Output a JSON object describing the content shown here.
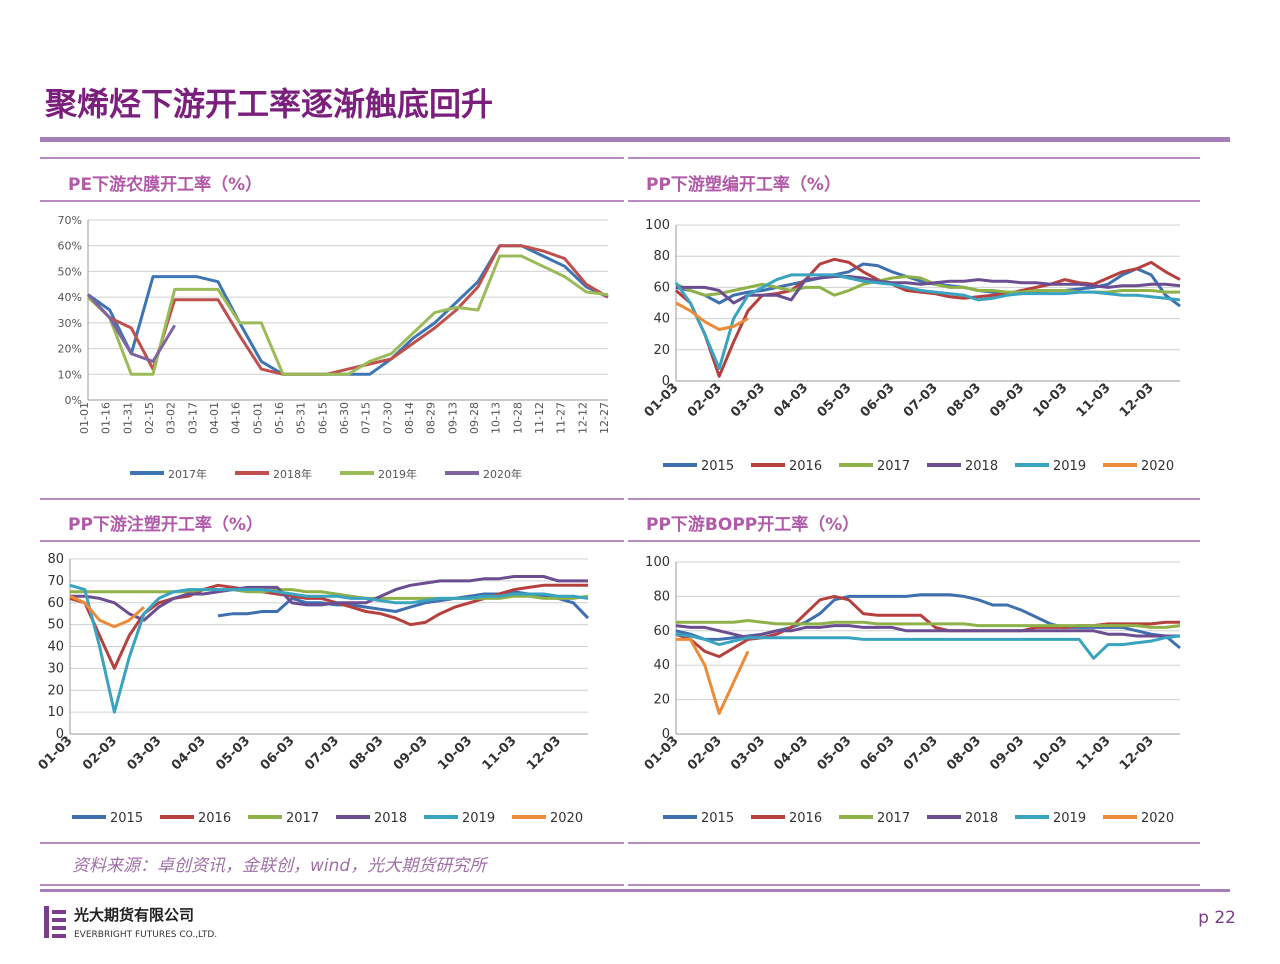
{
  "title": "聚烯烃下游开工率逐渐触底回升",
  "source": "资料来源：卓创资讯，金联创，wind，光大期货研究所",
  "footer": {
    "company": "光大期货有限公司",
    "company_en": "EVERBRIGHT FUTURES CO.,LTD.",
    "page": "p 22"
  },
  "chart_data": [
    {
      "type": "line",
      "title": "PE下游农膜开工率（%）",
      "categories": [
        "01-01",
        "01-16",
        "01-31",
        "02-15",
        "03-02",
        "03-17",
        "04-01",
        "04-16",
        "05-01",
        "05-16",
        "05-31",
        "06-15",
        "06-30",
        "07-15",
        "07-30",
        "08-14",
        "08-29",
        "09-13",
        "09-28",
        "10-13",
        "10-28",
        "11-12",
        "11-27",
        "12-12",
        "12-27"
      ],
      "ylim": [
        0,
        70
      ],
      "yticks": [
        {
          "value": 0,
          "label": "0%"
        },
        {
          "value": 10,
          "label": "10%"
        },
        {
          "value": 20,
          "label": "20%"
        },
        {
          "value": 30,
          "label": "30%"
        },
        {
          "value": 40,
          "label": "40%"
        },
        {
          "value": 50,
          "label": "50%"
        },
        {
          "value": 60,
          "label": "60%"
        },
        {
          "value": 70,
          "label": "70%"
        }
      ],
      "grid": true,
      "series": [
        {
          "name": "2017年",
          "color": "#3c75b4",
          "values": [
            41,
            35,
            18,
            48,
            48,
            48,
            46,
            30,
            15,
            10,
            10,
            10,
            10,
            10,
            16,
            24,
            30,
            38,
            46,
            60,
            60,
            56,
            52,
            44,
            40
          ]
        },
        {
          "name": "2018年",
          "color": "#c0504d",
          "values": [
            41,
            32,
            28,
            12,
            39,
            39,
            39,
            25,
            12,
            10,
            10,
            10,
            12,
            14,
            16,
            22,
            28,
            35,
            44,
            60,
            60,
            58,
            55,
            45,
            40
          ]
        },
        {
          "name": "2019年",
          "color": "#9bbb59",
          "values": [
            40,
            32,
            10,
            10,
            43,
            43,
            43,
            30,
            30,
            10,
            10,
            10,
            10,
            15,
            18,
            26,
            34,
            36,
            35,
            56,
            56,
            52,
            48,
            42,
            41
          ]
        },
        {
          "name": "2020年",
          "color": "#8064a2",
          "values": [
            41,
            32,
            18,
            15,
            29,
            null,
            null,
            null,
            null,
            null,
            null,
            null,
            null,
            null,
            null,
            null,
            null,
            null,
            null,
            null,
            null,
            null,
            null,
            null,
            null
          ]
        }
      ]
    },
    {
      "type": "line",
      "title": "PP下游塑编开工率（%）",
      "categories": [
        "01-03",
        null,
        null,
        "02-03",
        null,
        null,
        "03-03",
        null,
        null,
        "04-03",
        null,
        null,
        "05-03",
        null,
        null,
        "06-03",
        null,
        null,
        "07-03",
        null,
        null,
        "08-03",
        null,
        null,
        "09-03",
        null,
        null,
        "10-03",
        null,
        null,
        "11-03",
        null,
        null,
        "12-03",
        null,
        null
      ],
      "ylim": [
        0,
        100
      ],
      "yticks": [
        0,
        20,
        40,
        60,
        80,
        100
      ],
      "grid": true,
      "series": [
        {
          "name": "2015",
          "color": "#3e6fae",
          "values": [
            60,
            58,
            55,
            50,
            55,
            57,
            58,
            60,
            62,
            64,
            66,
            68,
            70,
            75,
            74,
            70,
            67,
            64,
            62,
            61,
            60,
            58,
            57,
            56,
            56,
            57,
            58,
            58,
            59,
            60,
            62,
            68,
            72,
            68,
            55,
            48
          ]
        },
        {
          "name": "2016",
          "color": "#b5403e",
          "values": [
            58,
            50,
            30,
            3,
            25,
            45,
            55,
            56,
            58,
            65,
            75,
            78,
            76,
            70,
            65,
            62,
            58,
            57,
            56,
            54,
            53,
            54,
            55,
            56,
            58,
            60,
            62,
            65,
            63,
            62,
            66,
            70,
            72,
            76,
            70,
            65
          ]
        },
        {
          "name": "2017",
          "color": "#8fb14a",
          "values": [
            62,
            58,
            55,
            56,
            58,
            60,
            62,
            60,
            58,
            60,
            60,
            55,
            58,
            62,
            64,
            66,
            67,
            66,
            62,
            60,
            60,
            58,
            58,
            57,
            57,
            58,
            58,
            58,
            57,
            57,
            57,
            58,
            58,
            58,
            57,
            57
          ]
        },
        {
          "name": "2018",
          "color": "#6b4e91",
          "values": [
            60,
            60,
            60,
            58,
            50,
            55,
            55,
            55,
            52,
            65,
            66,
            67,
            67,
            66,
            64,
            63,
            63,
            62,
            63,
            64,
            64,
            65,
            64,
            64,
            63,
            63,
            62,
            62,
            62,
            61,
            60,
            61,
            61,
            62,
            62,
            61
          ]
        },
        {
          "name": "2019",
          "color": "#3aa3c0",
          "values": [
            63,
            50,
            30,
            8,
            40,
            55,
            60,
            65,
            68,
            68,
            68,
            68,
            66,
            64,
            63,
            62,
            60,
            58,
            57,
            56,
            55,
            52,
            53,
            55,
            56,
            56,
            56,
            56,
            57,
            57,
            56,
            55,
            55,
            54,
            53,
            52
          ]
        },
        {
          "name": "2020",
          "color": "#ec8b3a",
          "values": [
            50,
            45,
            38,
            33,
            35,
            40,
            null,
            null,
            null,
            null,
            null,
            null,
            null,
            null,
            null,
            null,
            null,
            null,
            null,
            null,
            null,
            null,
            null,
            null,
            null,
            null,
            null,
            null,
            null,
            null,
            null,
            null,
            null,
            null,
            null,
            null
          ]
        }
      ]
    },
    {
      "type": "line",
      "title": "PP下游注塑开工率（%）",
      "categories": [
        "01-03",
        null,
        null,
        "02-03",
        null,
        null,
        "03-03",
        null,
        null,
        "04-03",
        null,
        null,
        "05-03",
        null,
        null,
        "06-03",
        null,
        null,
        "07-03",
        null,
        null,
        "08-03",
        null,
        null,
        "09-03",
        null,
        null,
        "10-03",
        null,
        null,
        "11-03",
        null,
        null,
        "12-03",
        null,
        null
      ],
      "ylim": [
        0,
        80
      ],
      "yticks": [
        0,
        10,
        20,
        30,
        40,
        50,
        60,
        70,
        80
      ],
      "grid": true,
      "series": [
        {
          "name": "2015",
          "color": "#3e6fae",
          "values": [
            null,
            null,
            null,
            null,
            null,
            null,
            null,
            null,
            null,
            null,
            54,
            55,
            55,
            56,
            56,
            62,
            60,
            60,
            59,
            59,
            58,
            57,
            56,
            58,
            60,
            61,
            62,
            63,
            64,
            64,
            65,
            64,
            63,
            62,
            60,
            53
          ]
        },
        {
          "name": "2016",
          "color": "#b5403e",
          "values": [
            62,
            60,
            45,
            30,
            45,
            55,
            60,
            62,
            63,
            66,
            68,
            67,
            66,
            65,
            64,
            63,
            62,
            62,
            60,
            58,
            56,
            55,
            53,
            50,
            51,
            55,
            58,
            60,
            62,
            64,
            66,
            67,
            68,
            68,
            68,
            68
          ]
        },
        {
          "name": "2017",
          "color": "#8fb14a",
          "values": [
            65,
            65,
            65,
            65,
            65,
            65,
            65,
            65,
            65,
            66,
            66,
            66,
            65,
            65,
            66,
            66,
            65,
            65,
            64,
            63,
            62,
            62,
            62,
            62,
            62,
            62,
            62,
            62,
            62,
            62,
            63,
            63,
            62,
            62,
            62,
            63
          ]
        },
        {
          "name": "2018",
          "color": "#6b4e91",
          "values": [
            63,
            63,
            62,
            60,
            55,
            52,
            58,
            62,
            64,
            64,
            65,
            66,
            67,
            67,
            67,
            60,
            59,
            59,
            60,
            60,
            60,
            63,
            66,
            68,
            69,
            70,
            70,
            70,
            71,
            71,
            72,
            72,
            72,
            70,
            70,
            70
          ]
        },
        {
          "name": "2019",
          "color": "#3aa3c0",
          "values": [
            68,
            66,
            40,
            10,
            35,
            55,
            62,
            65,
            66,
            66,
            66,
            66,
            66,
            66,
            65,
            64,
            63,
            63,
            63,
            62,
            62,
            61,
            60,
            60,
            61,
            62,
            62,
            62,
            63,
            63,
            64,
            64,
            64,
            63,
            63,
            62
          ]
        },
        {
          "name": "2020",
          "color": "#ec8b3a",
          "values": [
            63,
            60,
            52,
            49,
            52,
            58,
            null,
            null,
            null,
            null,
            null,
            null,
            null,
            null,
            null,
            null,
            null,
            null,
            null,
            null,
            null,
            null,
            null,
            null,
            null,
            null,
            null,
            null,
            null,
            null,
            null,
            null,
            null,
            null,
            null,
            null
          ]
        }
      ]
    },
    {
      "type": "line",
      "title": "PP下游BOPP开工率（%）",
      "categories": [
        "01-03",
        null,
        null,
        "02-03",
        null,
        null,
        "03-03",
        null,
        null,
        "04-03",
        null,
        null,
        "05-03",
        null,
        null,
        "06-03",
        null,
        null,
        "07-03",
        null,
        null,
        "08-03",
        null,
        null,
        "09-03",
        null,
        null,
        "10-03",
        null,
        null,
        "11-03",
        null,
        null,
        "12-03",
        null,
        null
      ],
      "ylim": [
        0,
        100
      ],
      "yticks": [
        0,
        20,
        40,
        60,
        80,
        100
      ],
      "grid": true,
      "series": [
        {
          "name": "2015",
          "color": "#3e6fae",
          "values": [
            60,
            58,
            55,
            55,
            56,
            57,
            58,
            60,
            62,
            65,
            70,
            78,
            80,
            80,
            80,
            80,
            80,
            81,
            81,
            81,
            80,
            78,
            75,
            75,
            72,
            68,
            64,
            62,
            62,
            62,
            62,
            62,
            60,
            58,
            57,
            50
          ]
        },
        {
          "name": "2016",
          "color": "#b5403e",
          "values": [
            58,
            55,
            48,
            45,
            50,
            55,
            56,
            58,
            62,
            70,
            78,
            80,
            78,
            70,
            69,
            69,
            69,
            69,
            62,
            60,
            60,
            60,
            60,
            60,
            60,
            62,
            62,
            62,
            63,
            63,
            64,
            64,
            64,
            64,
            65,
            65
          ]
        },
        {
          "name": "2017",
          "color": "#8fb14a",
          "values": [
            65,
            65,
            65,
            65,
            65,
            66,
            65,
            64,
            64,
            64,
            64,
            65,
            65,
            65,
            64,
            64,
            64,
            64,
            64,
            64,
            64,
            63,
            63,
            63,
            63,
            63,
            63,
            63,
            63,
            63,
            63,
            63,
            63,
            62,
            62,
            63
          ]
        },
        {
          "name": "2018",
          "color": "#6b4e91",
          "values": [
            63,
            62,
            62,
            60,
            58,
            56,
            58,
            60,
            60,
            62,
            62,
            63,
            63,
            62,
            62,
            62,
            60,
            60,
            60,
            60,
            60,
            60,
            60,
            60,
            60,
            60,
            60,
            60,
            60,
            60,
            58,
            58,
            57,
            57,
            57,
            57
          ]
        },
        {
          "name": "2019",
          "color": "#3aa3c0",
          "values": [
            58,
            57,
            55,
            52,
            54,
            56,
            56,
            56,
            56,
            56,
            56,
            56,
            56,
            55,
            55,
            55,
            55,
            55,
            55,
            55,
            55,
            55,
            55,
            55,
            55,
            55,
            55,
            55,
            55,
            44,
            52,
            52,
            53,
            54,
            56,
            57
          ]
        },
        {
          "name": "2020",
          "color": "#ec8b3a",
          "values": [
            55,
            55,
            40,
            12,
            30,
            48,
            null,
            null,
            null,
            null,
            null,
            null,
            null,
            null,
            null,
            null,
            null,
            null,
            null,
            null,
            null,
            null,
            null,
            null,
            null,
            null,
            null,
            null,
            null,
            null,
            null,
            null,
            null,
            null,
            null,
            null
          ]
        }
      ]
    }
  ]
}
